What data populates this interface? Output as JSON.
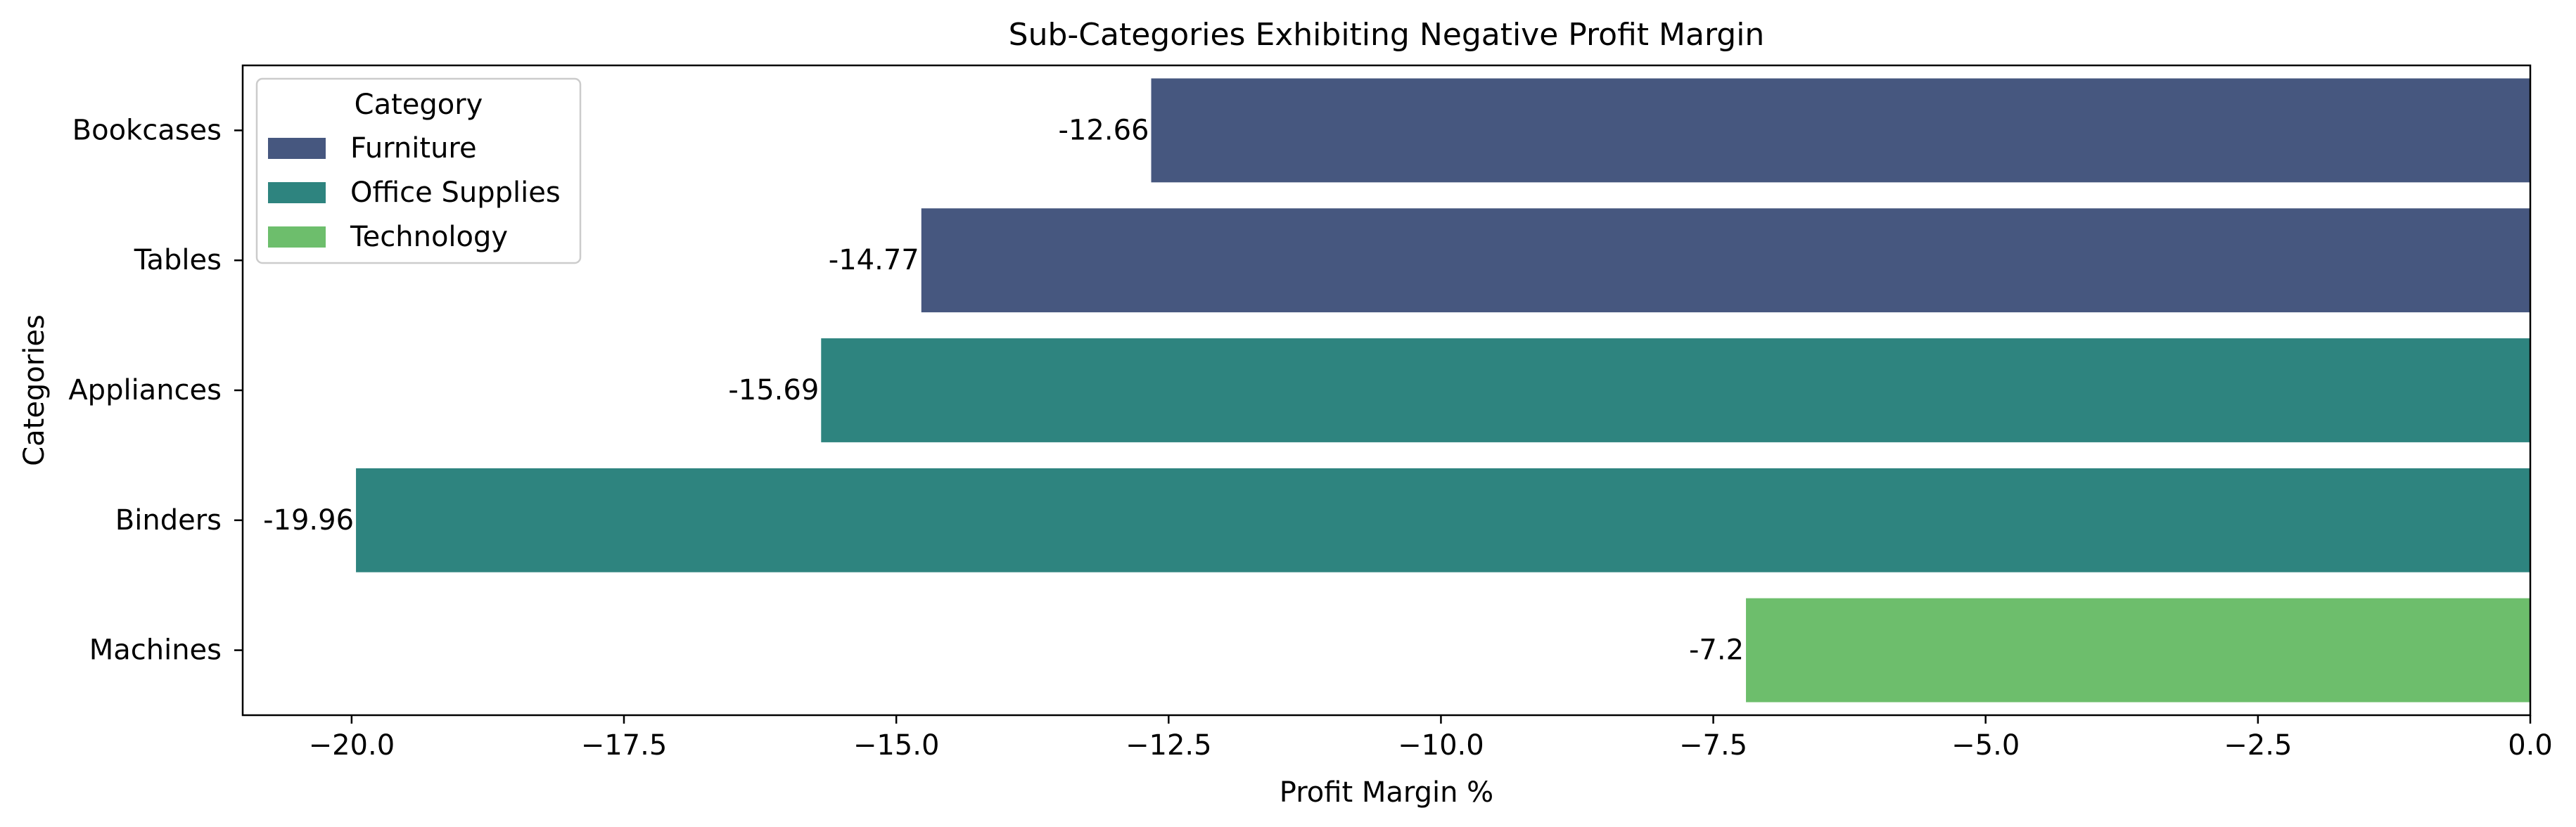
{
  "chart_data": {
    "type": "bar",
    "orientation": "horizontal",
    "title": "Sub-Categories Exhibiting Negative Profit Margin",
    "xlabel": "Profit Margin %",
    "ylabel": "Categories",
    "xlim": [
      -21.0,
      0.0
    ],
    "x_ticks": [
      -20.0,
      -17.5,
      -15.0,
      -12.5,
      -10.0,
      -7.5,
      -5.0,
      -2.5,
      0.0
    ],
    "x_tick_labels": [
      "−20.0",
      "−17.5",
      "−15.0",
      "−12.5",
      "−10.0",
      "−7.5",
      "−5.0",
      "−2.5",
      "0.0"
    ],
    "grid": false,
    "legend": {
      "title": "Category",
      "placement": "upper-left",
      "entries": [
        {
          "label": "Furniture",
          "color": "#46577f"
        },
        {
          "label": "Office Supplies",
          "color": "#2e847f"
        },
        {
          "label": "Technology",
          "color": "#6dbe6c"
        }
      ]
    },
    "bars": [
      {
        "category": "Bookcases",
        "value": -12.66,
        "label": "-12.66",
        "group": "Furniture",
        "color": "#46577f"
      },
      {
        "category": "Tables",
        "value": -14.77,
        "label": "-14.77",
        "group": "Furniture",
        "color": "#46577f"
      },
      {
        "category": "Appliances",
        "value": -15.69,
        "label": "-15.69",
        "group": "Office Supplies",
        "color": "#2e847f"
      },
      {
        "category": "Binders",
        "value": -19.96,
        "label": "-19.96",
        "group": "Office Supplies",
        "color": "#2e847f"
      },
      {
        "category": "Machines",
        "value": -7.2,
        "label": "-7.2",
        "group": "Technology",
        "color": "#6dbe6c"
      }
    ]
  }
}
